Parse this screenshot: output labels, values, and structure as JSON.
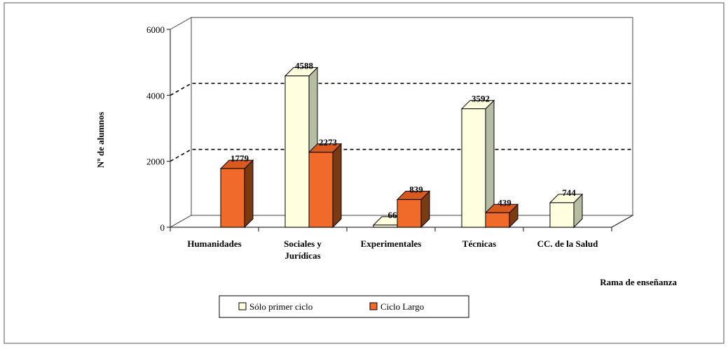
{
  "chart_data": {
    "type": "bar",
    "title": "",
    "xlabel": "Rama de enseñanza",
    "ylabel": "Nº de alumnos",
    "ylim": [
      0,
      6000
    ],
    "yticks": [
      0,
      2000,
      4000,
      6000
    ],
    "categories": [
      "Humanidades",
      "Sociales y Jurídicas",
      "Experimentales",
      "Técnicas",
      "CC. de la Salud"
    ],
    "category_lines": [
      [
        "Humanidades"
      ],
      [
        "Sociales y",
        "Jurídicas"
      ],
      [
        "Experimentales"
      ],
      [
        "Técnicas"
      ],
      [
        "CC. de la Salud"
      ]
    ],
    "series": [
      {
        "name": "Sólo primer ciclo",
        "color": "#ffffe0",
        "values": [
          null,
          4588,
          66,
          3592,
          744
        ]
      },
      {
        "name": "Ciclo Largo",
        "color": "#f06a2a",
        "values": [
          1779,
          2273,
          839,
          439,
          null
        ]
      }
    ],
    "gridlines": [
      2000,
      4000
    ],
    "grid_style": "dashed",
    "legend_position": "bottom-center",
    "three_d": true
  },
  "colors": {
    "side_light": "#b7bda2",
    "side_dark": "#7a3a12",
    "top_dark": "#d85a1e",
    "wall": "#ffffff",
    "axis": "#333333"
  }
}
